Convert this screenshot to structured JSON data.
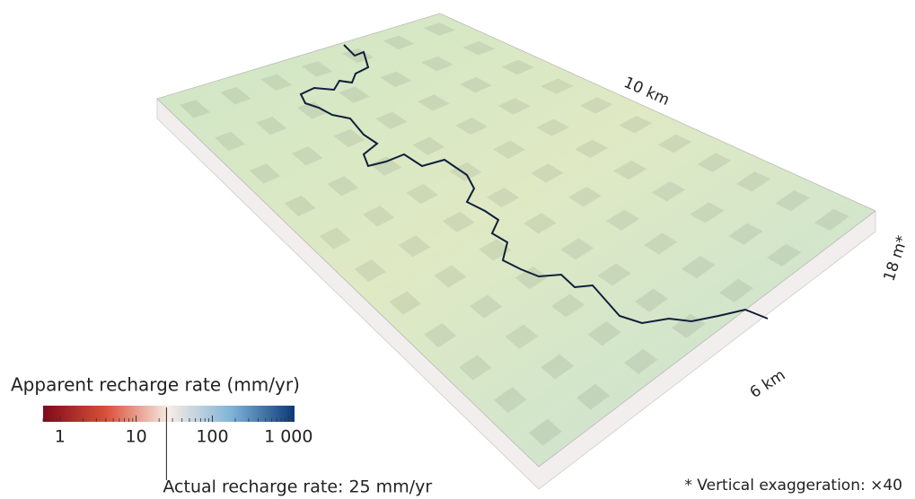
{
  "figure": {
    "dimensions": {
      "length": "10 km",
      "width": "6 km",
      "depth": "18 m*"
    },
    "colorbar": {
      "title": "Apparent recharge rate (mm/yr)",
      "scale": "log",
      "lim": [
        0.6,
        1200
      ],
      "ticks": [
        1,
        10,
        100,
        {
          "value": 1000,
          "label": "1 000"
        }
      ],
      "colors": [
        "#7f0a1c",
        "#d9503a",
        "#f7ece4",
        "#7fb3d8",
        "#0b3a78"
      ]
    },
    "actual_rate": {
      "value": 25,
      "label": "Actual recharge rate: 25 mm/yr"
    },
    "note": "* Vertical exaggeration: ×40"
  }
}
